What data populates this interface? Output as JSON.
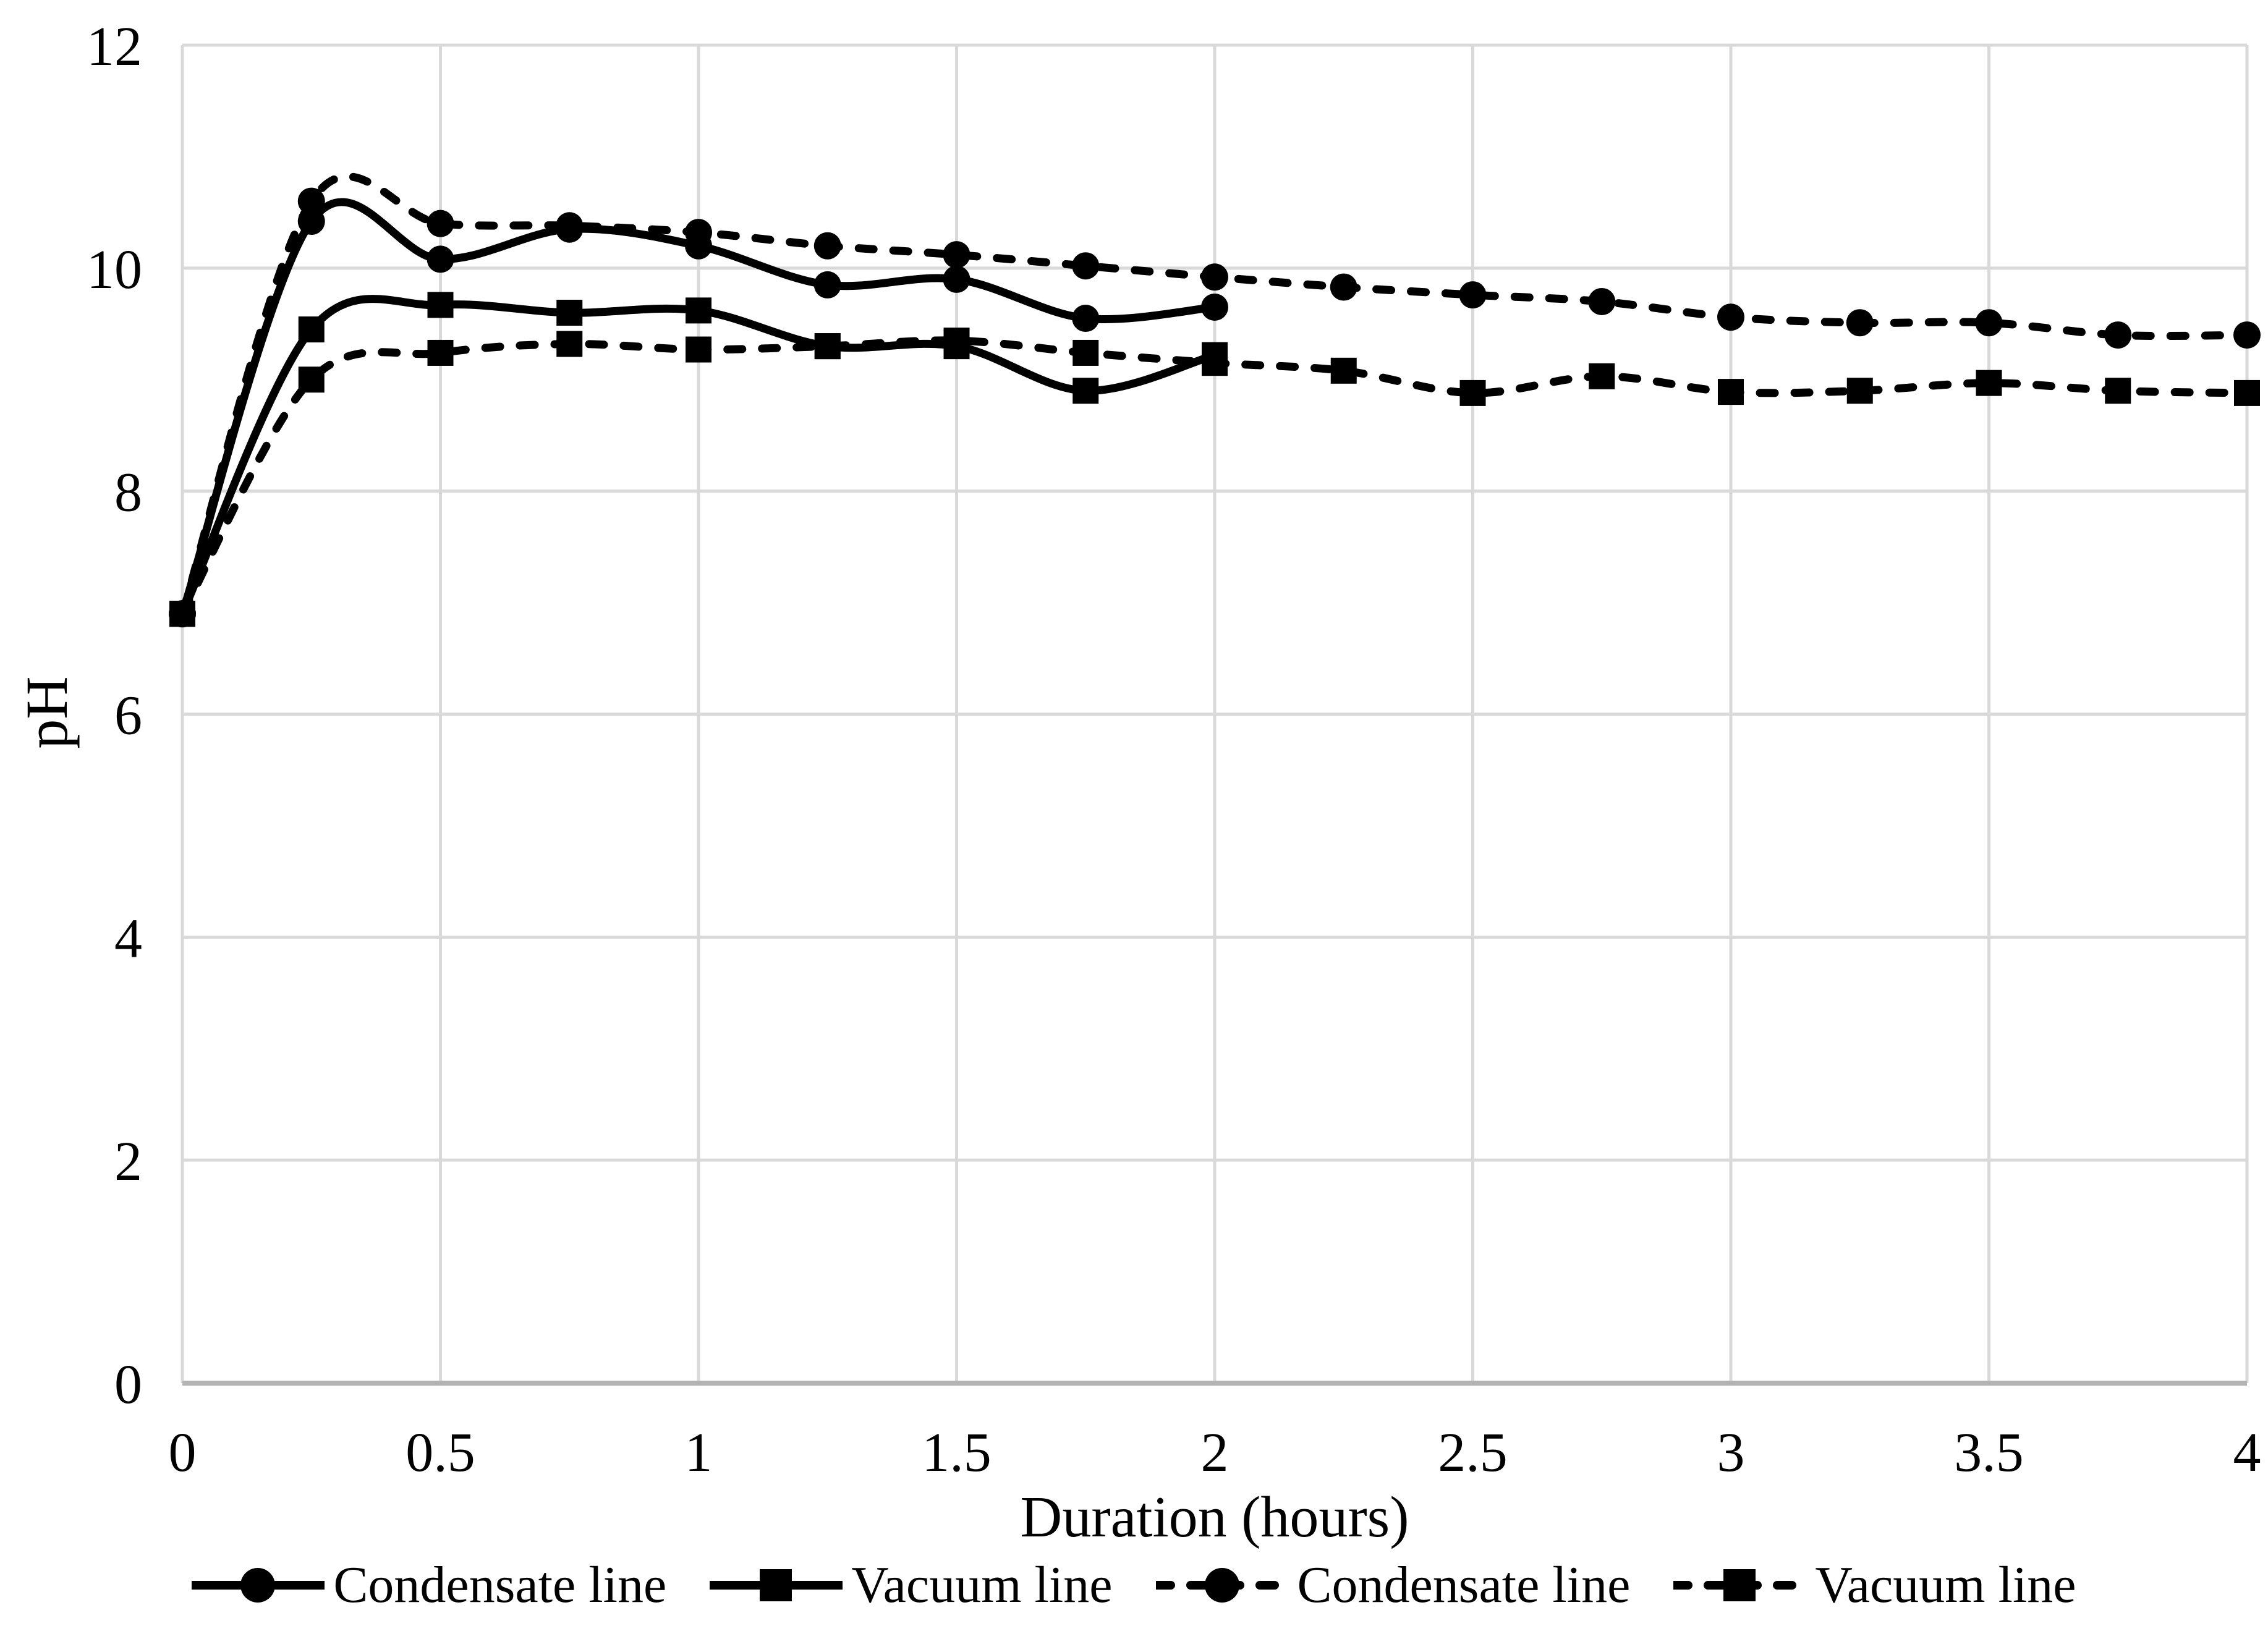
{
  "chart_data": {
    "type": "line",
    "title": "",
    "xlabel": "Duration (hours)",
    "ylabel": "pH",
    "xlim": [
      0,
      4
    ],
    "ylim": [
      0,
      12
    ],
    "grid": true,
    "legend_position": "bottom",
    "x_ticks": [
      {
        "value": 0,
        "label": "0"
      },
      {
        "value": 0.5,
        "label": "0.5"
      },
      {
        "value": 1,
        "label": "1"
      },
      {
        "value": 1.5,
        "label": "1.5"
      },
      {
        "value": 2,
        "label": "2"
      },
      {
        "value": 2.5,
        "label": "2.5"
      },
      {
        "value": 3,
        "label": "3"
      },
      {
        "value": 3.5,
        "label": "3.5"
      },
      {
        "value": 4,
        "label": "4"
      }
    ],
    "y_ticks": [
      {
        "value": 0,
        "label": "0"
      },
      {
        "value": 2,
        "label": "2"
      },
      {
        "value": 4,
        "label": "4"
      },
      {
        "value": 6,
        "label": "6"
      },
      {
        "value": 8,
        "label": "8"
      },
      {
        "value": 10,
        "label": "10"
      },
      {
        "value": 12,
        "label": "12"
      }
    ],
    "series": [
      {
        "name": "Condensate line",
        "marker": "circle",
        "line_style": "solid",
        "x": [
          0,
          0.25,
          0.5,
          0.75,
          1,
          1.25,
          1.5,
          1.75,
          2
        ],
        "y": [
          6.9,
          10.42,
          10.08,
          10.35,
          10.2,
          9.85,
          9.9,
          9.55,
          9.65
        ]
      },
      {
        "name": "Vacuum line",
        "marker": "square",
        "line_style": "solid",
        "x": [
          0,
          0.25,
          0.5,
          0.75,
          1,
          1.25,
          1.5,
          1.75,
          2
        ],
        "y": [
          6.9,
          9.45,
          9.67,
          9.6,
          9.62,
          9.3,
          9.3,
          8.9,
          9.22
        ]
      },
      {
        "name": "Condensate line",
        "marker": "circle",
        "line_style": "dashed",
        "x": [
          0,
          0.25,
          0.5,
          0.75,
          1,
          1.25,
          1.5,
          1.75,
          2,
          2.25,
          2.5,
          2.75,
          3,
          3.25,
          3.5,
          3.75,
          4
        ],
        "y": [
          6.9,
          10.6,
          10.4,
          10.38,
          10.32,
          10.2,
          10.12,
          10.02,
          9.92,
          9.83,
          9.76,
          9.7,
          9.56,
          9.51,
          9.51,
          9.4,
          9.4
        ]
      },
      {
        "name": "Vacuum line",
        "marker": "square",
        "line_style": "dashed",
        "x": [
          0,
          0.25,
          0.5,
          0.75,
          1,
          1.25,
          1.5,
          1.75,
          2,
          2.25,
          2.5,
          2.75,
          3,
          3.25,
          3.5,
          3.75,
          4
        ],
        "y": [
          6.9,
          9.0,
          9.24,
          9.32,
          9.27,
          9.3,
          9.35,
          9.24,
          9.15,
          9.08,
          8.88,
          9.03,
          8.89,
          8.9,
          8.97,
          8.9,
          8.88
        ]
      }
    ],
    "colors": {
      "series": "#000000",
      "gridline": "#d9d9d9",
      "axis_line": "#b3b3b3",
      "text": "#000000",
      "background": "#ffffff"
    }
  }
}
